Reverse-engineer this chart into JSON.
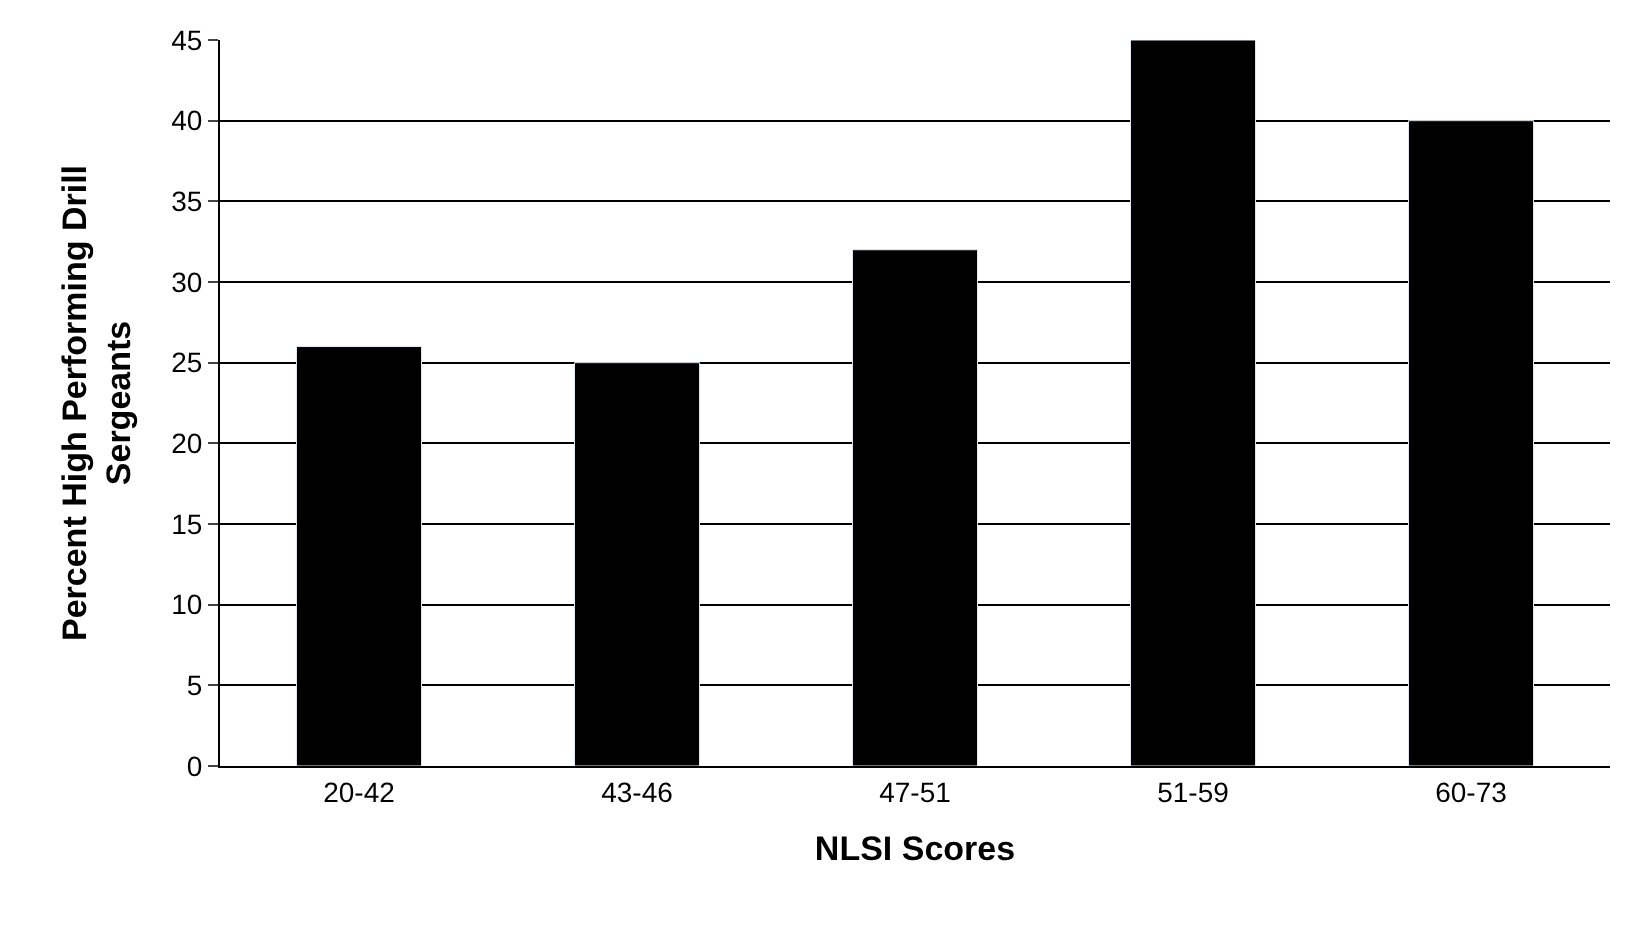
{
  "chart_data": {
    "type": "bar",
    "xlabel": "NLSI Scores",
    "ylabel": "Percent High Performing Drill Sergeants",
    "categories": [
      "20-42",
      "43-46",
      "47-51",
      "51-59",
      "60-73"
    ],
    "values": [
      26,
      25,
      32,
      45,
      40
    ],
    "color": "#000000",
    "ylim": [
      0,
      45
    ],
    "yticks": [
      0,
      5,
      10,
      15,
      20,
      25,
      30,
      35,
      40,
      45
    ],
    "grid": "y",
    "legend": false
  }
}
